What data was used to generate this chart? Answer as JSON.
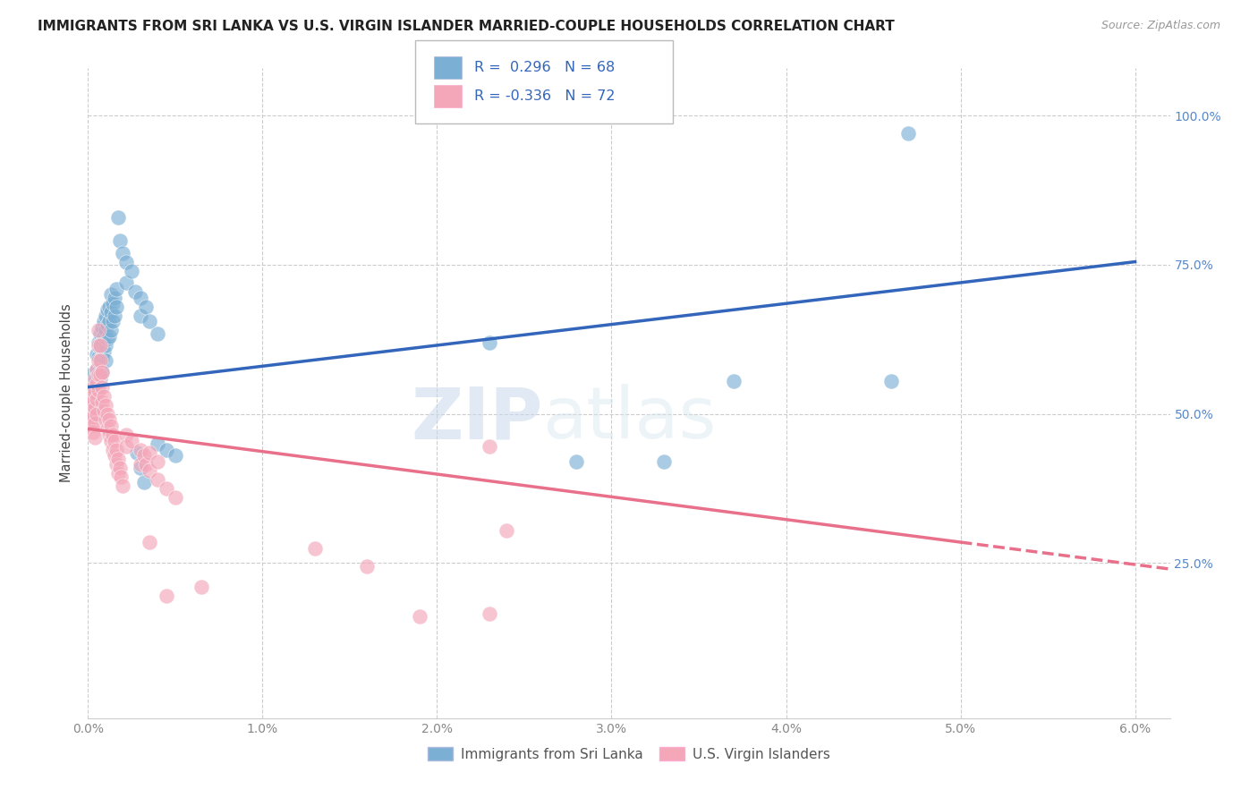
{
  "title": "IMMIGRANTS FROM SRI LANKA VS U.S. VIRGIN ISLANDER MARRIED-COUPLE HOUSEHOLDS CORRELATION CHART",
  "source": "Source: ZipAtlas.com",
  "ylabel": "Married-couple Households",
  "legend_label1": "Immigrants from Sri Lanka",
  "legend_label2": "U.S. Virgin Islanders",
  "r1": 0.296,
  "n1": 68,
  "r2": -0.336,
  "n2": 72,
  "blue_color": "#7BAFD4",
  "pink_color": "#F4A7B9",
  "blue_line_color": "#3366BB",
  "pink_line_color": "#E8708A",
  "watermark_zip": "ZIP",
  "watermark_atlas": "atlas",
  "blue_scatter": [
    [
      0.0002,
      0.565
    ],
    [
      0.0003,
      0.545
    ],
    [
      0.0003,
      0.5
    ],
    [
      0.0004,
      0.555
    ],
    [
      0.0004,
      0.535
    ],
    [
      0.0004,
      0.515
    ],
    [
      0.0005,
      0.6
    ],
    [
      0.0005,
      0.575
    ],
    [
      0.0005,
      0.555
    ],
    [
      0.0005,
      0.535
    ],
    [
      0.0006,
      0.62
    ],
    [
      0.0006,
      0.595
    ],
    [
      0.0006,
      0.57
    ],
    [
      0.0006,
      0.545
    ],
    [
      0.0007,
      0.635
    ],
    [
      0.0007,
      0.61
    ],
    [
      0.0007,
      0.585
    ],
    [
      0.0007,
      0.56
    ],
    [
      0.0008,
      0.645
    ],
    [
      0.0008,
      0.62
    ],
    [
      0.0008,
      0.595
    ],
    [
      0.0008,
      0.57
    ],
    [
      0.0009,
      0.655
    ],
    [
      0.0009,
      0.63
    ],
    [
      0.0009,
      0.605
    ],
    [
      0.001,
      0.665
    ],
    [
      0.001,
      0.64
    ],
    [
      0.001,
      0.615
    ],
    [
      0.001,
      0.59
    ],
    [
      0.0011,
      0.675
    ],
    [
      0.0011,
      0.65
    ],
    [
      0.0011,
      0.625
    ],
    [
      0.0012,
      0.68
    ],
    [
      0.0012,
      0.655
    ],
    [
      0.0012,
      0.63
    ],
    [
      0.0013,
      0.7
    ],
    [
      0.0013,
      0.67
    ],
    [
      0.0013,
      0.64
    ],
    [
      0.0014,
      0.685
    ],
    [
      0.0014,
      0.655
    ],
    [
      0.0015,
      0.695
    ],
    [
      0.0015,
      0.665
    ],
    [
      0.0016,
      0.71
    ],
    [
      0.0016,
      0.68
    ],
    [
      0.0017,
      0.83
    ],
    [
      0.0018,
      0.79
    ],
    [
      0.002,
      0.77
    ],
    [
      0.0022,
      0.755
    ],
    [
      0.0022,
      0.72
    ],
    [
      0.0025,
      0.74
    ],
    [
      0.0027,
      0.705
    ],
    [
      0.003,
      0.695
    ],
    [
      0.003,
      0.665
    ],
    [
      0.0033,
      0.68
    ],
    [
      0.0035,
      0.655
    ],
    [
      0.004,
      0.635
    ],
    [
      0.004,
      0.45
    ],
    [
      0.0045,
      0.44
    ],
    [
      0.005,
      0.43
    ],
    [
      0.0028,
      0.435
    ],
    [
      0.003,
      0.41
    ],
    [
      0.0032,
      0.385
    ],
    [
      0.047,
      0.97
    ],
    [
      0.046,
      0.555
    ],
    [
      0.037,
      0.555
    ],
    [
      0.033,
      0.42
    ],
    [
      0.028,
      0.42
    ],
    [
      0.023,
      0.62
    ]
  ],
  "pink_scatter": [
    [
      0.0001,
      0.52
    ],
    [
      0.0001,
      0.49
    ],
    [
      0.0002,
      0.53
    ],
    [
      0.0002,
      0.505
    ],
    [
      0.0002,
      0.48
    ],
    [
      0.0003,
      0.545
    ],
    [
      0.0003,
      0.52
    ],
    [
      0.0003,
      0.495
    ],
    [
      0.0003,
      0.47
    ],
    [
      0.0004,
      0.56
    ],
    [
      0.0004,
      0.535
    ],
    [
      0.0004,
      0.51
    ],
    [
      0.0004,
      0.485
    ],
    [
      0.0004,
      0.46
    ],
    [
      0.0005,
      0.575
    ],
    [
      0.0005,
      0.55
    ],
    [
      0.0005,
      0.525
    ],
    [
      0.0005,
      0.5
    ],
    [
      0.0006,
      0.64
    ],
    [
      0.0006,
      0.615
    ],
    [
      0.0006,
      0.59
    ],
    [
      0.0006,
      0.565
    ],
    [
      0.0006,
      0.54
    ],
    [
      0.0007,
      0.615
    ],
    [
      0.0007,
      0.59
    ],
    [
      0.0007,
      0.565
    ],
    [
      0.0008,
      0.57
    ],
    [
      0.0008,
      0.545
    ],
    [
      0.0008,
      0.52
    ],
    [
      0.0009,
      0.53
    ],
    [
      0.0009,
      0.505
    ],
    [
      0.001,
      0.515
    ],
    [
      0.001,
      0.49
    ],
    [
      0.0011,
      0.5
    ],
    [
      0.0011,
      0.475
    ],
    [
      0.0012,
      0.49
    ],
    [
      0.0012,
      0.465
    ],
    [
      0.0013,
      0.48
    ],
    [
      0.0013,
      0.455
    ],
    [
      0.0014,
      0.465
    ],
    [
      0.0014,
      0.44
    ],
    [
      0.0015,
      0.455
    ],
    [
      0.0015,
      0.43
    ],
    [
      0.0016,
      0.44
    ],
    [
      0.0016,
      0.415
    ],
    [
      0.0017,
      0.425
    ],
    [
      0.0017,
      0.4
    ],
    [
      0.0018,
      0.41
    ],
    [
      0.0019,
      0.395
    ],
    [
      0.002,
      0.38
    ],
    [
      0.0022,
      0.465
    ],
    [
      0.0022,
      0.445
    ],
    [
      0.0025,
      0.455
    ],
    [
      0.003,
      0.44
    ],
    [
      0.003,
      0.415
    ],
    [
      0.0032,
      0.43
    ],
    [
      0.0033,
      0.415
    ],
    [
      0.0035,
      0.435
    ],
    [
      0.0035,
      0.405
    ],
    [
      0.004,
      0.42
    ],
    [
      0.004,
      0.39
    ],
    [
      0.0045,
      0.375
    ],
    [
      0.005,
      0.36
    ],
    [
      0.023,
      0.445
    ],
    [
      0.024,
      0.305
    ],
    [
      0.023,
      0.165
    ],
    [
      0.019,
      0.16
    ],
    [
      0.016,
      0.245
    ],
    [
      0.013,
      0.275
    ],
    [
      0.0065,
      0.21
    ],
    [
      0.0045,
      0.195
    ],
    [
      0.0035,
      0.285
    ]
  ],
  "blue_line": {
    "x0": 0.0,
    "x1": 0.06,
    "y0": 0.545,
    "y1": 0.755
  },
  "pink_solid_line": {
    "x0": 0.0,
    "x1": 0.05,
    "y0": 0.475,
    "y1": 0.285
  },
  "pink_dashed_line": {
    "x0": 0.05,
    "x1": 0.062,
    "y0": 0.285,
    "y1": 0.24
  },
  "xlim": [
    0.0,
    0.062
  ],
  "ylim": [
    -0.01,
    1.08
  ],
  "xticks": [
    0.0,
    0.01,
    0.02,
    0.03,
    0.04,
    0.05,
    0.06
  ],
  "xticklabels": [
    "0.0%",
    "1.0%",
    "2.0%",
    "3.0%",
    "4.0%",
    "5.0%",
    "6.0%"
  ],
  "ytick_vals": [
    0.25,
    0.5,
    0.75,
    1.0
  ],
  "ytick_labels": [
    "25.0%",
    "50.0%",
    "75.0%",
    "100.0%"
  ],
  "grid_color": "#CCCCCC",
  "tick_color": "#888888",
  "right_tick_color": "#5588CC"
}
